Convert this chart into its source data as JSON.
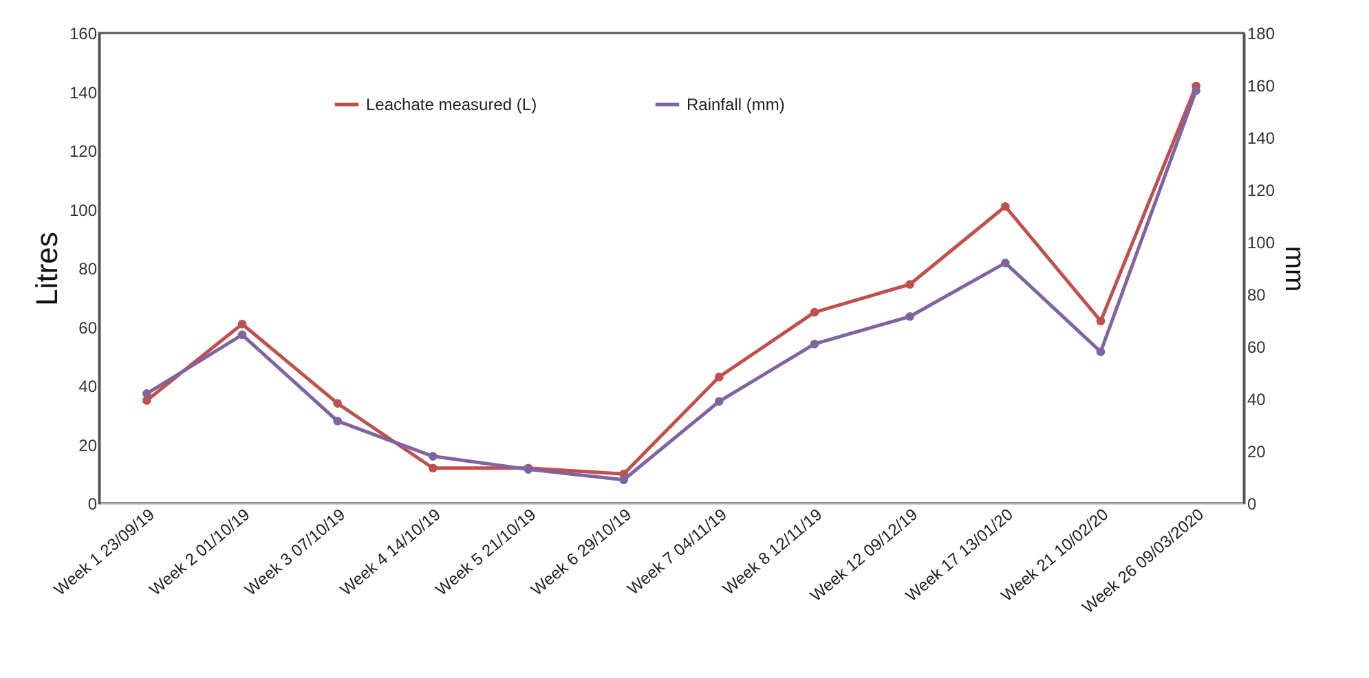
{
  "chart_data": {
    "type": "line",
    "ylabel": "Litres",
    "y2label": "mm",
    "categories": [
      "Week 1 23/09/19",
      "Week 2  01/10/19",
      "Week 3  07/10/19",
      "Week 4  14/10/19",
      "Week 5  21/10/19",
      "Week 6  29/10/19",
      "Week 7 04/11/19",
      "Week 8 12/11/19",
      "Week 12 09/12/19",
      "Week 17 13/01/20",
      "Week 21 10/02/20",
      "Week 26  09/03/2020"
    ],
    "series": [
      {
        "name": "Leachate measured (L)",
        "color": "#c0504d",
        "values": [
          35,
          61,
          34,
          12,
          12,
          10,
          43,
          65,
          74.5,
          101,
          62,
          142
        ]
      },
      {
        "name": "Rainfall (mm)",
        "color": "#8064a2",
        "axis": "y2",
        "values": [
          42,
          64.5,
          31.5,
          18,
          13,
          9,
          39,
          61,
          71.5,
          92,
          58,
          158
        ]
      }
    ],
    "ylim": [
      0,
      160
    ],
    "yticks": [
      0,
      20,
      40,
      60,
      80,
      100,
      120,
      140,
      160
    ],
    "y2lim": [
      0,
      180
    ],
    "y2ticks": [
      0,
      20,
      40,
      60,
      80,
      100,
      120,
      140,
      160,
      180
    ],
    "grid": false,
    "legend": "top left",
    "marker": "circle",
    "line_style": "solid"
  }
}
